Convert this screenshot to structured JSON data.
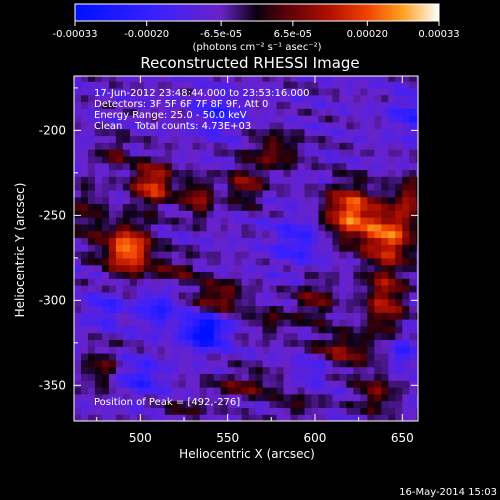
{
  "chart_data": {
    "type": "heatmap",
    "title": "Reconstructed RHESSI Image",
    "xlabel": "Heliocentric X (arcsec)",
    "ylabel": "Heliocentric Y (arcsec)",
    "xlim": [
      462,
      659
    ],
    "ylim": [
      -371,
      -168
    ],
    "xticks": [
      "500",
      "550",
      "600",
      "650"
    ],
    "xtick_values": [
      500,
      550,
      600,
      650
    ],
    "yticks": [
      "-200",
      "-250",
      "-300",
      "-350"
    ],
    "ytick_values": [
      -200,
      -250,
      -300,
      -350
    ],
    "colorbar": {
      "min": -0.00033,
      "max": 0.00033,
      "ticks": [
        "-0.00033",
        "-0.00020",
        "-6.5e-05",
        "6.5e-05",
        "0.00020",
        "0.00033"
      ],
      "tick_values": [
        -0.00033,
        -0.0002,
        -6.5e-05,
        6.5e-05,
        0.0002,
        0.00033
      ],
      "unit_label": "(photons cm⁻² s⁻¹ asec⁻²)"
    },
    "annotations": [
      "17-Jun-2012 23:48:44.000 to 23:53:16.000",
      "Detectors: 3F 5F 6F 7F 8F 9F, Att 0",
      "Energy Range: 25.0 - 50.0 keV",
      "Clean    Total counts: 4.73E+03"
    ],
    "peak_label": "Position of Peak = [492,-276]",
    "peak": [
      492,
      -276
    ],
    "blobs": [
      {
        "x": 493,
        "y": -270,
        "sx": 9,
        "sy": 10,
        "v": 0.00033
      },
      {
        "x": 507,
        "y": -231,
        "sx": 8,
        "sy": 9,
        "v": 0.00026
      },
      {
        "x": 485,
        "y": -213,
        "sx": 6,
        "sy": 6,
        "v": 0.00012
      },
      {
        "x": 533,
        "y": -240,
        "sx": 6,
        "sy": 8,
        "v": 0.00018
      },
      {
        "x": 560,
        "y": -232,
        "sx": 7,
        "sy": 8,
        "v": 0.00016
      },
      {
        "x": 577,
        "y": -212,
        "sx": 10,
        "sy": 8,
        "v": 0.00014
      },
      {
        "x": 620,
        "y": -248,
        "sx": 10,
        "sy": 11,
        "v": 0.0003
      },
      {
        "x": 642,
        "y": -262,
        "sx": 10,
        "sy": 11,
        "v": 0.00028
      },
      {
        "x": 640,
        "y": -300,
        "sx": 8,
        "sy": 14,
        "v": 0.0002
      },
      {
        "x": 655,
        "y": -240,
        "sx": 7,
        "sy": 9,
        "v": 0.00016
      },
      {
        "x": 520,
        "y": -282,
        "sx": 10,
        "sy": 6,
        "v": 0.00011
      },
      {
        "x": 545,
        "y": -298,
        "sx": 10,
        "sy": 7,
        "v": 0.00017
      },
      {
        "x": 575,
        "y": -312,
        "sx": 8,
        "sy": 6,
        "v": 0.0001
      },
      {
        "x": 600,
        "y": -300,
        "sx": 8,
        "sy": 9,
        "v": 0.00013
      },
      {
        "x": 615,
        "y": -330,
        "sx": 12,
        "sy": 8,
        "v": 0.00016
      },
      {
        "x": 478,
        "y": -340,
        "sx": 7,
        "sy": 9,
        "v": 0.00012
      },
      {
        "x": 560,
        "y": -350,
        "sx": 14,
        "sy": 6,
        "v": 0.00012
      },
      {
        "x": 590,
        "y": -362,
        "sx": 9,
        "sy": 5,
        "v": 9e-05
      },
      {
        "x": 525,
        "y": -365,
        "sx": 10,
        "sy": 4,
        "v": 9e-05
      },
      {
        "x": 635,
        "y": -355,
        "sx": 8,
        "sy": 8,
        "v": 0.00014
      },
      {
        "x": 470,
        "y": -250,
        "sx": 7,
        "sy": 14,
        "v": 0.0001
      },
      {
        "x": 537,
        "y": -318,
        "sx": 8,
        "sy": 7,
        "v": -0.0003
      },
      {
        "x": 510,
        "y": -305,
        "sx": 8,
        "sy": 8,
        "v": -0.00014
      },
      {
        "x": 545,
        "y": -190,
        "sx": 9,
        "sy": 8,
        "v": -0.00013
      },
      {
        "x": 590,
        "y": -265,
        "sx": 10,
        "sy": 10,
        "v": -0.00012
      },
      {
        "x": 655,
        "y": -190,
        "sx": 8,
        "sy": 8,
        "v": -0.00012
      },
      {
        "x": 480,
        "y": -305,
        "sx": 7,
        "sy": 7,
        "v": -0.00011
      },
      {
        "x": 500,
        "y": -345,
        "sx": 9,
        "sy": 7,
        "v": -0.00013
      },
      {
        "x": 600,
        "y": -340,
        "sx": 8,
        "sy": 6,
        "v": -0.00011
      },
      {
        "x": 650,
        "y": -330,
        "sx": 6,
        "sy": 7,
        "v": -0.00012
      }
    ]
  },
  "footer": {
    "timestamp": "16-May-2014 15:03"
  }
}
